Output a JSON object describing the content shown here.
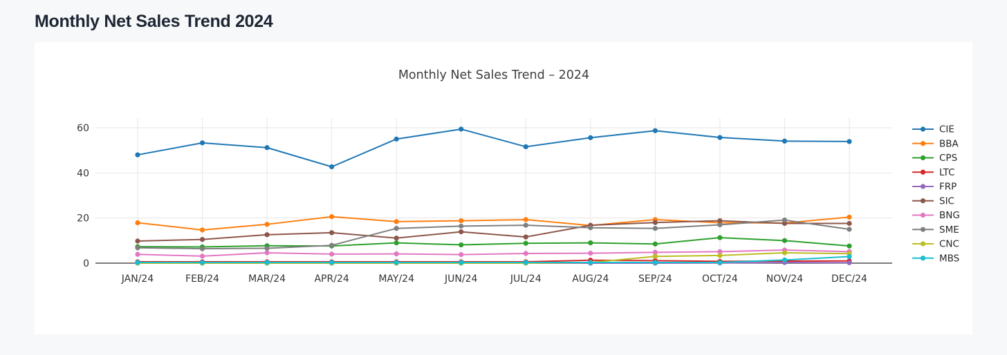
{
  "page": {
    "title": "Monthly Net Sales Trend 2024"
  },
  "colors": {
    "page_bg": "#f7f8fa",
    "card_bg": "#ffffff",
    "page_title_color": "#1d2633",
    "chart_title_color": "#3d3d3d",
    "tick_color": "#333333",
    "grid_color": "#e6e6e6",
    "axis_color": "#2b2b2b",
    "legend_text_color": "#262626"
  },
  "chart_data": {
    "type": "line",
    "title": "Monthly Net Sales Trend – 2024",
    "xlabel": "",
    "ylabel": "",
    "categories": [
      "JAN/24",
      "FEB/24",
      "MAR/24",
      "APR/24",
      "MAY/24",
      "JUN/24",
      "JUL/24",
      "AUG/24",
      "SEP/24",
      "OCT/24",
      "NOV/24",
      "DEC/24"
    ],
    "yticks": [
      0,
      20,
      40,
      60
    ],
    "ylim": [
      0,
      64.5
    ],
    "grid": true,
    "legend_position": "right",
    "marker": "circle",
    "series": [
      {
        "name": "CIE",
        "color": "#1f77b4",
        "values": [
          48.0,
          53.3,
          51.2,
          42.7,
          55.0,
          59.4,
          51.6,
          55.6,
          58.7,
          55.7,
          54.1,
          53.9
        ]
      },
      {
        "name": "BBA",
        "color": "#ff7f0e",
        "values": [
          17.9,
          14.7,
          17.2,
          20.6,
          18.4,
          18.8,
          19.3,
          16.7,
          19.3,
          17.9,
          17.8,
          20.4
        ]
      },
      {
        "name": "CPS",
        "color": "#2ca02c",
        "values": [
          7.3,
          7.2,
          7.7,
          7.6,
          9.0,
          8.1,
          8.8,
          9.0,
          8.5,
          11.3,
          10.0,
          7.6
        ]
      },
      {
        "name": "LTC",
        "color": "#d62728",
        "values": [
          0.6,
          0.6,
          0.6,
          0.6,
          0.6,
          0.6,
          0.6,
          1.3,
          1.1,
          0.8,
          0.9,
          1.0
        ]
      },
      {
        "name": "FRP",
        "color": "#9467bd",
        "values": [
          0.0,
          0.0,
          0.0,
          0.0,
          0.0,
          0.0,
          0.0,
          0.0,
          0.0,
          0.1,
          0.3,
          0.2
        ]
      },
      {
        "name": "SIC",
        "color": "#8c564b",
        "values": [
          9.8,
          10.5,
          12.6,
          13.5,
          11.1,
          13.9,
          11.6,
          16.8,
          18.0,
          18.8,
          17.6,
          17.6
        ]
      },
      {
        "name": "BNG",
        "color": "#e377c2",
        "values": [
          3.9,
          3.1,
          4.6,
          4.0,
          4.1,
          3.8,
          4.3,
          4.4,
          4.8,
          5.1,
          5.8,
          5.1
        ]
      },
      {
        "name": "SME",
        "color": "#7f7f7f",
        "values": [
          6.8,
          6.4,
          6.6,
          7.9,
          15.4,
          16.4,
          16.8,
          15.7,
          15.4,
          17.0,
          19.1,
          15.0
        ]
      },
      {
        "name": "CNC",
        "color": "#bcbd22",
        "values": [
          0.0,
          0.0,
          0.0,
          0.0,
          0.0,
          0.0,
          0.0,
          0.3,
          3.0,
          3.4,
          4.6,
          4.2
        ]
      },
      {
        "name": "MBS",
        "color": "#17becf",
        "values": [
          0.3,
          0.3,
          0.3,
          0.3,
          0.3,
          0.3,
          0.3,
          0.3,
          0.3,
          0.3,
          1.4,
          2.9
        ]
      }
    ]
  }
}
